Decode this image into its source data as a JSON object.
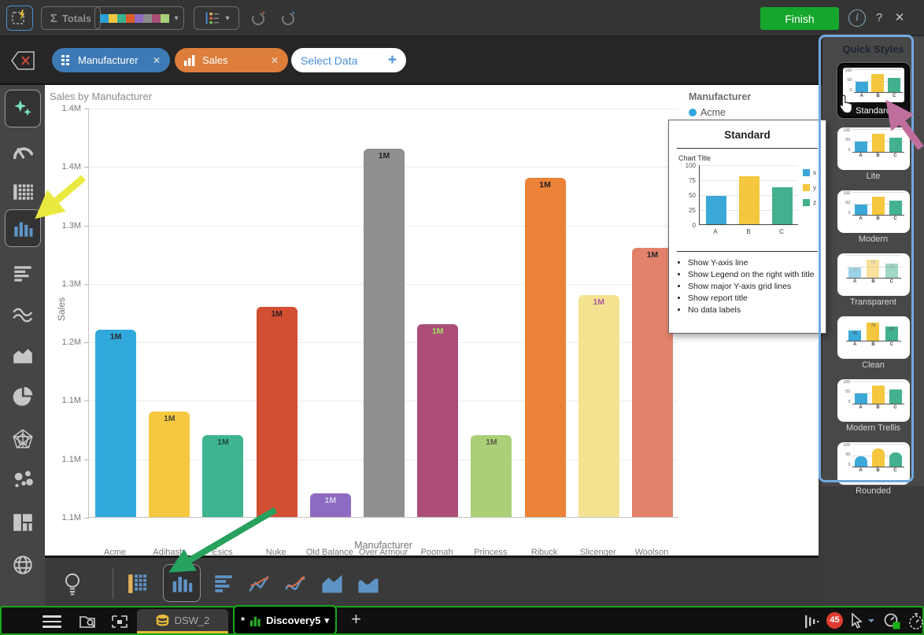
{
  "toolbar": {
    "sigma": "Σ",
    "totals_label": "Totals",
    "finish_label": "Finish",
    "palette_colors": [
      "#2d9fd8",
      "#f3c73f",
      "#3bb08f",
      "#dd5a2b",
      "#8e6bc4",
      "#8c8c8c",
      "#a94e74",
      "#a8d178"
    ]
  },
  "icons": {
    "caret_down": "▾",
    "plus": "+",
    "close_x": "✕",
    "info": "i",
    "help": "?"
  },
  "filter_bar": {
    "chips": [
      {
        "label": "Manufacturer",
        "color": "#3d7ab5"
      },
      {
        "label": "Sales",
        "color": "#dd7e3b"
      }
    ],
    "select_data_label": "Select Data"
  },
  "sidebar": {
    "items": [
      "recommendations",
      "gauge",
      "grid",
      "bar-chart",
      "horizontal-bar",
      "line",
      "area",
      "pie",
      "radar",
      "bubble",
      "heatmap",
      "map"
    ],
    "selected": "bar-chart"
  },
  "chart_data": {
    "type": "bar",
    "title": "Sales by Manufacturer",
    "xlabel": "Manufacturer",
    "ylabel": "Sales",
    "categories": [
      "Acme",
      "Adihash",
      "Esics",
      "Nuke",
      "Old Balance",
      "Over Armour",
      "Poomah",
      "Princess",
      "Ribuck",
      "Slicenger",
      "Woolson"
    ],
    "values": [
      1.21,
      1.14,
      1.12,
      1.23,
      1.07,
      1.365,
      1.215,
      1.12,
      1.34,
      1.24,
      1.28
    ],
    "values_unit": "M",
    "bar_labels": [
      "1M",
      "1M",
      "1M",
      "1M",
      "1M",
      "1M",
      "1M",
      "1M",
      "1M",
      "1M",
      "1M"
    ],
    "bar_colors": [
      "#31a8dc",
      "#f6c840",
      "#3eb491",
      "#d24f32",
      "#8e6bc2",
      "#8f8f8f",
      "#ac4e78",
      "#a9d077",
      "#ec8138",
      "#f3e391",
      "#e2826b"
    ],
    "bar_label_colors": [
      "#2b2b2b",
      "#4a4a2e",
      "#1f4a3c",
      "#2b1f1c",
      "#dcd3f2",
      "#222222",
      "#9fe064",
      "#5e5e46",
      "#202020",
      "#ae56a0",
      "#262626"
    ],
    "y_tick_labels": [
      "1.4M",
      "1.4M",
      "1.3M",
      "1.3M",
      "1.2M",
      "1.1M",
      "1.1M",
      "1.1M"
    ],
    "ylim": [
      1.05,
      1.4
    ],
    "grid": true,
    "legend": {
      "title": "Manufacturer",
      "position": "right",
      "items": [
        {
          "label": "Acme",
          "color": "#31a8dc"
        }
      ]
    }
  },
  "tooltip": {
    "title": "Standard",
    "bullets": [
      "Show Y-axis line",
      "Show Legend on the right with title",
      "Show major Y-axis grid lines",
      "Show report title",
      "No data labels"
    ],
    "mini_chart": {
      "type": "bar",
      "title": "Chart Title",
      "categories": [
        "A",
        "B",
        "C"
      ],
      "values": [
        47,
        80,
        62
      ],
      "colors": [
        "#3ba8d8",
        "#f5c73e",
        "#43b18f"
      ],
      "y_ticks": [
        "100",
        "75",
        "50",
        "25",
        "0"
      ],
      "ylim": [
        0,
        100
      ],
      "legend": [
        {
          "label": "x",
          "color": "#3ba8d8"
        },
        {
          "label": "y",
          "color": "#f5c73e"
        },
        {
          "label": "z",
          "color": "#43b18f"
        }
      ]
    }
  },
  "quick_styles": {
    "header": "Quick Styles",
    "selected": "Standard",
    "mini_categories": [
      "A",
      "B",
      "C"
    ],
    "mini_values": [
      45,
      76,
      60
    ],
    "mini_colors": [
      "#3ba8d8",
      "#f5c73e",
      "#43b18f"
    ],
    "mini_y_ticks": [
      "100",
      "50",
      "0"
    ],
    "styles": [
      {
        "name": "Standard",
        "variant": "dark"
      },
      {
        "name": "Lite",
        "variant": "axis"
      },
      {
        "name": "Modern",
        "variant": "axis"
      },
      {
        "name": "Transparent",
        "variant": "transparent"
      },
      {
        "name": "Clean",
        "variant": "clean"
      },
      {
        "name": "Modern Trellis",
        "variant": "axis"
      },
      {
        "name": "Rounded",
        "variant": "rounded"
      }
    ]
  },
  "bottom_toolbar": {
    "icons": [
      "lightbulb",
      "table",
      "vertical-bar",
      "horizontal-bar",
      "line",
      "curve",
      "area",
      "smooth-area"
    ],
    "selected": "vertical-bar"
  },
  "taskbar": {
    "tabs": [
      {
        "label": "DSW_2"
      },
      {
        "label": "Discovery5",
        "prefix": "*"
      }
    ],
    "notification_count": "45"
  }
}
